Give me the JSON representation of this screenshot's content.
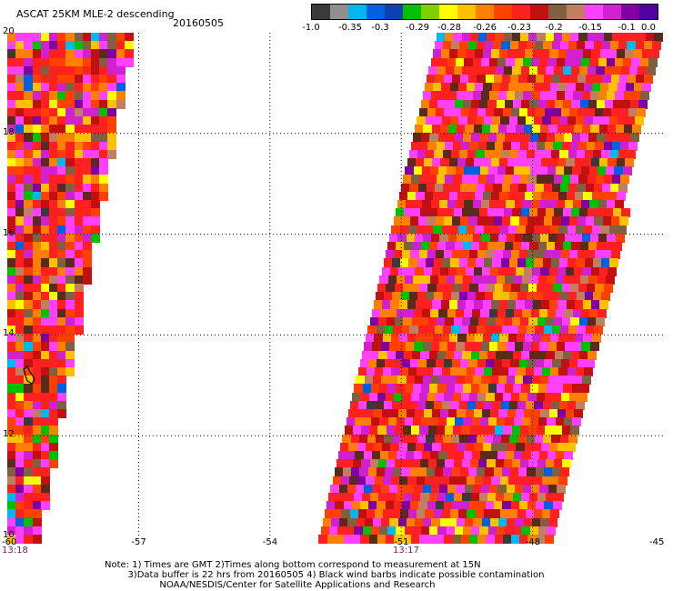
{
  "header": {
    "title": "ASCAT 25KM MLE-2 descending",
    "date": "20160505"
  },
  "colorbar": {
    "colors": [
      "#3a3a3a",
      "#909090",
      "#00b8f0",
      "#0060e0",
      "#1040b0",
      "#00c000",
      "#80d000",
      "#ffff00",
      "#ffc000",
      "#ff8000",
      "#ff4000",
      "#ff2020",
      "#c01010",
      "#806040",
      "#c08060",
      "#ff40ff",
      "#d020d0",
      "#8000a0",
      "#5000a0"
    ],
    "labels": [
      "-1.0",
      "-0.35",
      "-0.3",
      "-0.29",
      "-0.28",
      "-0.26",
      "-0.23",
      "-0.2",
      "-0.15",
      "-0.1",
      "0.0"
    ]
  },
  "axes": {
    "x_ticks": [
      "-60",
      "-57",
      "-54",
      "-51",
      "-48",
      "-45"
    ],
    "y_ticks": [
      "20",
      "18",
      "16",
      "14",
      "12",
      "10"
    ],
    "x_range": [
      -60,
      -45
    ],
    "y_range": [
      10,
      20
    ],
    "grid": "dotted"
  },
  "swaths": {
    "left_time": "13:18",
    "right_time": "13:17"
  },
  "palette_weights": {
    "colors": [
      "#ff2020",
      "#ff4000",
      "#ff8000",
      "#ffc000",
      "#ffff00",
      "#ff40ff",
      "#d020d0",
      "#c01010",
      "#806040",
      "#c08060",
      "#5a2a1a",
      "#8000a0",
      "#00c000",
      "#00b8f0",
      "#0060e0",
      "#3a3a3a"
    ],
    "weights": [
      22,
      10,
      10,
      5,
      3,
      14,
      8,
      8,
      5,
      3,
      5,
      2,
      2,
      1,
      1,
      1
    ]
  },
  "notes": {
    "line1": "Note: 1) Times are GMT 2)Times along bottom correspond to measurement at 15N",
    "line2": "3)Data buffer is 22 hrs from 20160505 4) Black wind barbs indicate possible contamination",
    "line3": "NOAA/NESDIS/Center for Satellite Applications and Research"
  }
}
